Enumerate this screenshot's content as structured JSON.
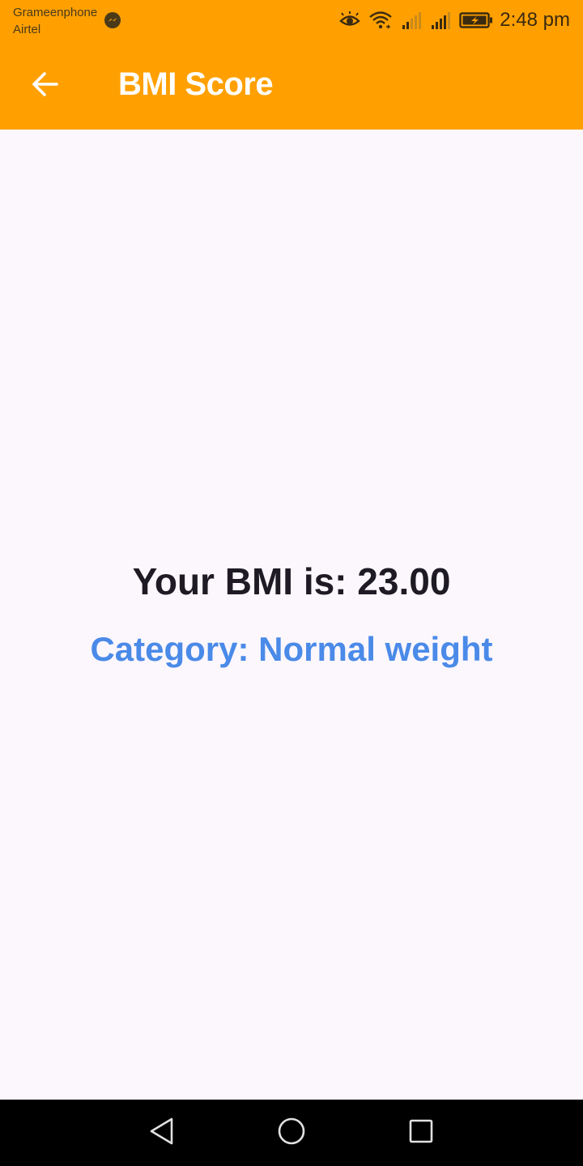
{
  "status_bar": {
    "carrier_1": "Grameenphone",
    "carrier_2": "Airtel",
    "time": "2:48 pm",
    "icons": [
      "messenger-icon",
      "eye-comfort-icon",
      "wifi-icon",
      "signal-sim1-icon",
      "signal-sim2-icon",
      "battery-charging-icon"
    ]
  },
  "app_bar": {
    "title": "BMI Score",
    "back_icon": "arrow-back-icon"
  },
  "result": {
    "bmi_line": "Your BMI is: 23.00",
    "category_line": "Category: Normal weight"
  },
  "nav_bar": {
    "icons": [
      "nav-back-icon",
      "nav-home-icon",
      "nav-recents-icon"
    ]
  },
  "colors": {
    "app_bar": "#ffa000",
    "background": "#fcf7fd",
    "bmi_text": "#1f1b24",
    "category_text": "#4a8ae8",
    "nav_bar": "#000000"
  }
}
